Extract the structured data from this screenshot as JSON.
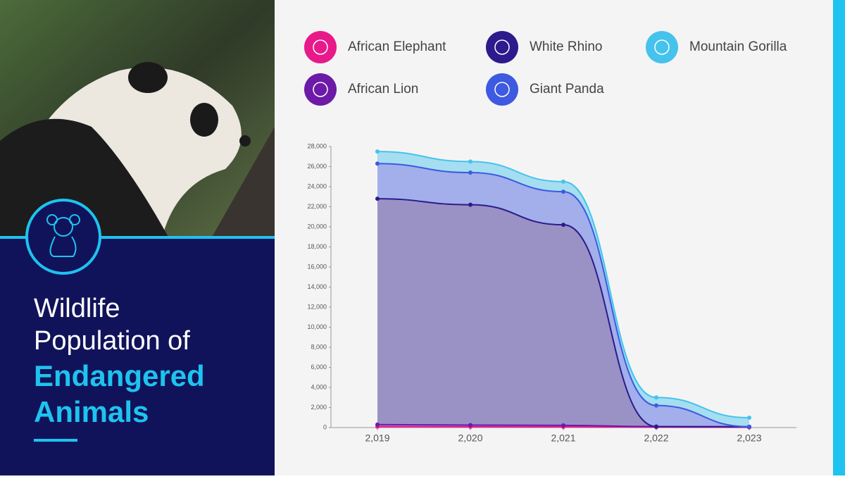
{
  "header": {
    "title_lines": [
      "Wildlife",
      "Population of"
    ],
    "highlight_lines": [
      "Endangered",
      "Animals"
    ]
  },
  "chart_data": {
    "type": "stacked-area",
    "categories": [
      "2,019",
      "2,020",
      "2,021",
      "2,022",
      "2,023"
    ],
    "series": [
      {
        "name": "African Elephant",
        "color": "#e8198b",
        "values": [
          100,
          80,
          70,
          40,
          30
        ]
      },
      {
        "name": "African Lion",
        "color": "#6c1aa8",
        "values": [
          200,
          170,
          150,
          60,
          50
        ]
      },
      {
        "name": "White Rhino",
        "color": "#2d1a8c",
        "values": [
          22500,
          21950,
          19980,
          0,
          0
        ]
      },
      {
        "name": "Giant Panda",
        "color": "#3d5ae0",
        "values": [
          3500,
          3200,
          3300,
          2100,
          0
        ]
      },
      {
        "name": "Mountain Gorilla",
        "color": "#45c3ec",
        "values": [
          1200,
          1100,
          1000,
          800,
          900
        ]
      }
    ],
    "ylim": [
      0,
      28000
    ],
    "yticks": [
      0,
      {
        "value": 2000,
        "label": "2,000"
      },
      {
        "value": 4000,
        "label": "4,000"
      },
      {
        "value": 6000,
        "label": "6,000"
      },
      {
        "value": 8000,
        "label": "8,000"
      },
      {
        "value": 10000,
        "label": "10,000"
      },
      {
        "value": 12000,
        "label": "12,000"
      },
      {
        "value": 14000,
        "label": "14,000"
      },
      {
        "value": 16000,
        "label": "16,000"
      },
      {
        "value": 18000,
        "label": "18,000"
      },
      {
        "value": 20000,
        "label": "20,000"
      },
      {
        "value": 22000,
        "label": "22,000"
      },
      {
        "value": 24000,
        "label": "24,000"
      },
      {
        "value": 26000,
        "label": "26,000"
      },
      {
        "value": 28000,
        "label": "28,000"
      }
    ]
  }
}
